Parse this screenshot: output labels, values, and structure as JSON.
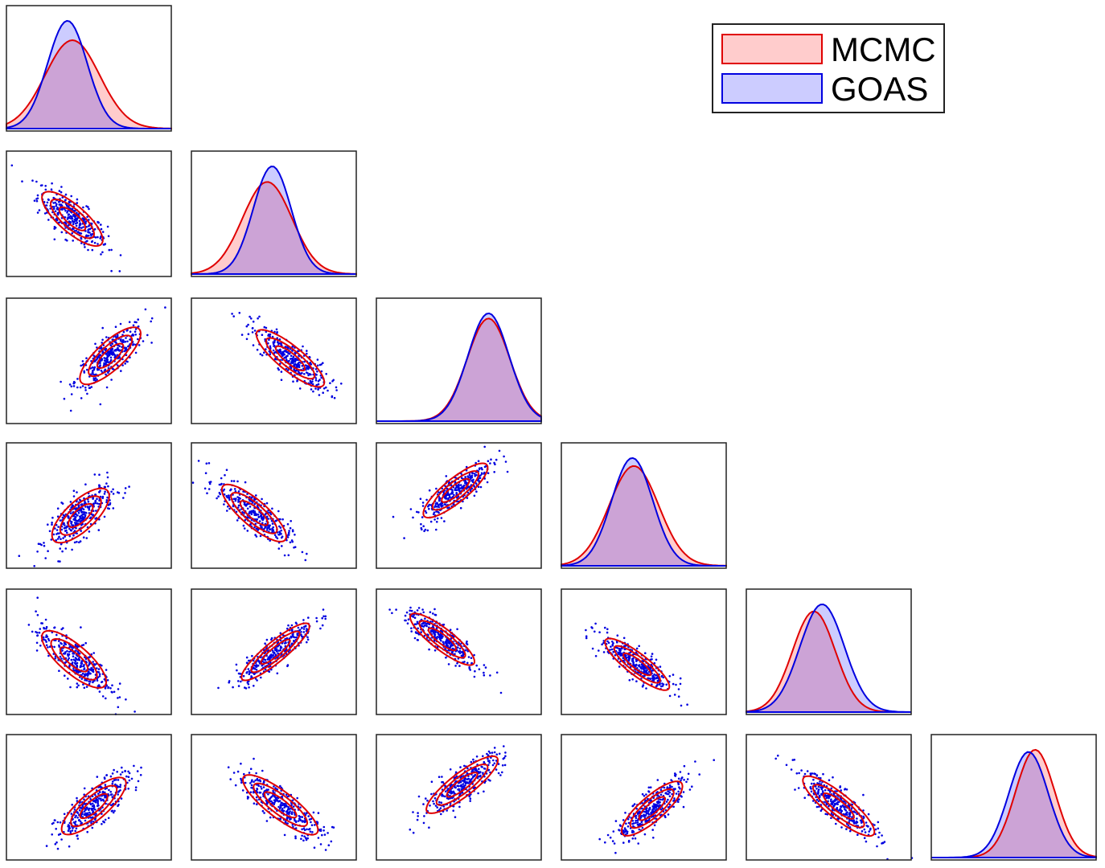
{
  "chart_data": {
    "type": "corner",
    "n_params": 6,
    "axes_ticks_shown": false,
    "legend": {
      "placement": "top-right",
      "entries": [
        {
          "name": "MCMC",
          "fill": "#ffcccc",
          "edge": "#e00000"
        },
        {
          "name": "GOAS",
          "fill": "#ccccff",
          "edge": "#0000e0"
        }
      ]
    },
    "colors": {
      "mcmc_line": "#e00000",
      "mcmc_fill": "#ff0000",
      "goas_line": "#0000e0",
      "goas_fill": "#0000ff",
      "overlap": "#c8a0d2",
      "scatter": "#0000e0"
    },
    "marginals": [
      {
        "param": 1,
        "mcmc_mean": 0.4,
        "mcmc_sd": 0.165,
        "goas_mean": 0.37,
        "goas_sd": 0.12,
        "goas_peak_ratio": 1.22
      },
      {
        "param": 2,
        "mcmc_mean": 0.46,
        "mcmc_sd": 0.15,
        "goas_mean": 0.49,
        "goas_sd": 0.115,
        "goas_peak_ratio": 1.17
      },
      {
        "param": 3,
        "mcmc_mean": 0.68,
        "mcmc_sd": 0.13,
        "goas_mean": 0.68,
        "goas_sd": 0.125,
        "goas_peak_ratio": 1.05
      },
      {
        "param": 4,
        "mcmc_mean": 0.44,
        "mcmc_sd": 0.15,
        "goas_mean": 0.43,
        "goas_sd": 0.125,
        "goas_peak_ratio": 1.08
      },
      {
        "param": 5,
        "mcmc_mean": 0.41,
        "mcmc_sd": 0.13,
        "goas_mean": 0.46,
        "goas_sd": 0.135,
        "goas_peak_ratio": 1.07
      },
      {
        "param": 6,
        "mcmc_mean": 0.63,
        "mcmc_sd": 0.12,
        "goas_mean": 0.59,
        "goas_sd": 0.12,
        "goas_peak_ratio": 0.98
      }
    ],
    "pairs": [
      {
        "row": 2,
        "col": 1,
        "mx": 0.4,
        "my": 0.46,
        "sx": 0.17,
        "sy": 0.2,
        "rho": -0.78
      },
      {
        "row": 3,
        "col": 1,
        "mx": 0.63,
        "my": 0.54,
        "sx": 0.17,
        "sy": 0.21,
        "rho": 0.78
      },
      {
        "row": 3,
        "col": 2,
        "mx": 0.6,
        "my": 0.52,
        "sx": 0.19,
        "sy": 0.21,
        "rho": -0.84
      },
      {
        "row": 4,
        "col": 1,
        "mx": 0.45,
        "my": 0.42,
        "sx": 0.16,
        "sy": 0.2,
        "rho": 0.72
      },
      {
        "row": 4,
        "col": 2,
        "mx": 0.38,
        "my": 0.44,
        "sx": 0.18,
        "sy": 0.21,
        "rho": -0.82
      },
      {
        "row": 4,
        "col": 3,
        "mx": 0.48,
        "my": 0.62,
        "sx": 0.18,
        "sy": 0.2,
        "rho": 0.84
      },
      {
        "row": 5,
        "col": 1,
        "mx": 0.41,
        "my": 0.44,
        "sx": 0.18,
        "sy": 0.21,
        "rho": -0.78
      },
      {
        "row": 5,
        "col": 2,
        "mx": 0.51,
        "my": 0.5,
        "sx": 0.19,
        "sy": 0.21,
        "rho": 0.89
      },
      {
        "row": 5,
        "col": 3,
        "mx": 0.4,
        "my": 0.6,
        "sx": 0.18,
        "sy": 0.19,
        "rho": -0.86
      },
      {
        "row": 5,
        "col": 4,
        "mx": 0.46,
        "my": 0.4,
        "sx": 0.18,
        "sy": 0.19,
        "rho": -0.86
      },
      {
        "row": 6,
        "col": 1,
        "mx": 0.53,
        "my": 0.43,
        "sx": 0.18,
        "sy": 0.21,
        "rho": 0.8
      },
      {
        "row": 6,
        "col": 2,
        "mx": 0.54,
        "my": 0.44,
        "sx": 0.21,
        "sy": 0.22,
        "rho": -0.84
      },
      {
        "row": 6,
        "col": 3,
        "mx": 0.52,
        "my": 0.6,
        "sx": 0.2,
        "sy": 0.21,
        "rho": 0.86
      },
      {
        "row": 6,
        "col": 4,
        "mx": 0.55,
        "my": 0.41,
        "sx": 0.17,
        "sy": 0.2,
        "rho": 0.82
      },
      {
        "row": 6,
        "col": 5,
        "mx": 0.56,
        "my": 0.43,
        "sx": 0.2,
        "sy": 0.22,
        "rho": -0.86
      }
    ]
  }
}
